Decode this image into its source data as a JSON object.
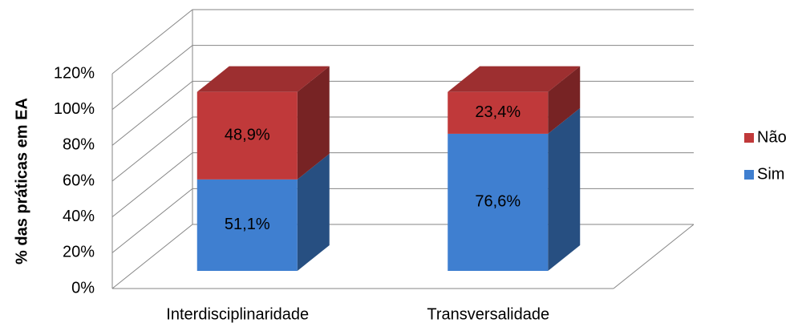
{
  "chart_data": {
    "type": "bar3d_stacked",
    "y_label": "% das práticas em EA",
    "categories": [
      "Interdisciplinaridade",
      "Transversalidade"
    ],
    "series": [
      {
        "name": "Sim",
        "color": "#3f7fd0",
        "values": [
          51.1,
          76.6
        ],
        "value_labels": [
          "51,1%",
          "76,6%"
        ]
      },
      {
        "name": "Não",
        "color": "#c0393a",
        "values": [
          48.9,
          23.4
        ],
        "value_labels": [
          "48,9%",
          "23,4%"
        ]
      }
    ],
    "ylim": [
      0,
      120
    ],
    "yticks": [
      {
        "value": 0,
        "label": "0%"
      },
      {
        "value": 20,
        "label": "20%"
      },
      {
        "value": 40,
        "label": "40%"
      },
      {
        "value": 60,
        "label": "60%"
      },
      {
        "value": 80,
        "label": "80%"
      },
      {
        "value": 100,
        "label": "100%"
      },
      {
        "value": 120,
        "label": "120%"
      }
    ],
    "grid": true,
    "legend": "right"
  }
}
